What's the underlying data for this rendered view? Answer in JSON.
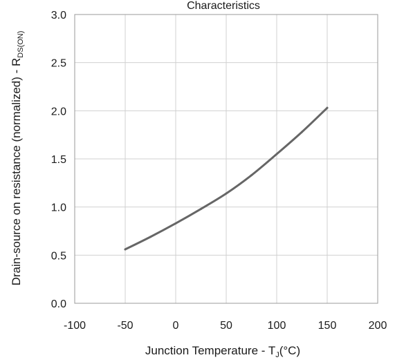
{
  "chart_data": {
    "type": "line",
    "title": "Characteristics",
    "xlabel": {
      "main": "Junction Temperature - T",
      "sub": "J",
      "unit": "(°C)"
    },
    "ylabel": {
      "main": "Drain-source on resistance (normalized) - R",
      "sub": "DS(ON)"
    },
    "xlim": [
      -100,
      200
    ],
    "ylim": [
      0.0,
      3.0
    ],
    "x_ticks": [
      -100,
      -50,
      0,
      50,
      100,
      150,
      200
    ],
    "x_tick_labels": [
      "-100",
      "-50",
      "0",
      "50",
      "100",
      "150",
      "200"
    ],
    "y_ticks": [
      0.0,
      0.5,
      1.0,
      1.5,
      2.0,
      2.5,
      3.0
    ],
    "y_tick_labels": [
      "0.0",
      "0.5",
      "1.0",
      "1.5",
      "2.0",
      "2.5",
      "3.0"
    ],
    "grid": true,
    "series": [
      {
        "color": "#666666",
        "x": [
          -50,
          -25,
          0,
          25,
          50,
          75,
          100,
          125,
          150
        ],
        "y": [
          0.56,
          0.69,
          0.83,
          0.98,
          1.14,
          1.33,
          1.55,
          1.78,
          2.03
        ]
      }
    ]
  }
}
